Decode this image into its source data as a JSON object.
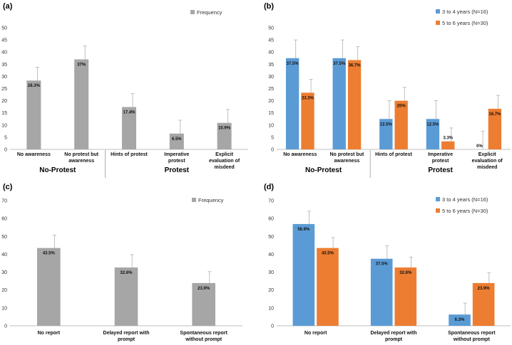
{
  "chart_data": [
    {
      "panel": "(a)",
      "type": "bar",
      "legend": [
        "Frequency"
      ],
      "categories": [
        "No awareness",
        "No protest but awareness",
        "Hints of protest",
        "Imperative protest",
        "Explicit evaluation of misdeed"
      ],
      "series": [
        {
          "name": "Frequency",
          "color": "#a6a6a6",
          "values": [
            28.3,
            37,
            17.4,
            6.5,
            10.9
          ],
          "labels": [
            "28.3%",
            "37%",
            "17.4%",
            "6.5%",
            "10.9%"
          ],
          "errors": [
            5.5,
            5.5,
            5.5,
            5.5,
            5.5
          ]
        }
      ],
      "ylim": [
        0,
        50
      ],
      "ystep": 5,
      "groups": [
        {
          "label": "No-Protest",
          "from": 0,
          "to": 1
        },
        {
          "label": "Protest",
          "from": 2,
          "to": 4
        }
      ]
    },
    {
      "panel": "(b)",
      "type": "bar",
      "legend": [
        "3 to 4 years (N=16)",
        "5 to 6 years (N=30)"
      ],
      "categories": [
        "No awareness",
        "No protest but awareness",
        "Hints of protest",
        "Imperative protest",
        "Explicit evaluation of misdeed"
      ],
      "series": [
        {
          "name": "3 to 4 years (N=16)",
          "color": "#5b9bd5",
          "values": [
            37.5,
            37.5,
            12.5,
            12.5,
            0
          ],
          "labels": [
            "37.5%",
            "37.5%",
            "12.5%",
            "12.5%",
            "0%"
          ],
          "errors": [
            7.5,
            7.5,
            7.5,
            7.5,
            7.5
          ]
        },
        {
          "name": "5 to 6 years (N=30)",
          "color": "#ed7d31",
          "values": [
            23.3,
            36.7,
            20,
            3.3,
            16.7
          ],
          "labels": [
            "23.3%",
            "36.7%",
            "20%",
            "3.3%",
            "16.7%"
          ],
          "errors": [
            5.5,
            5.5,
            5.5,
            5.5,
            5.5
          ]
        }
      ],
      "ylim": [
        0,
        50
      ],
      "ystep": 5,
      "groups": [
        {
          "label": "No-Protest",
          "from": 0,
          "to": 1
        },
        {
          "label": "Protest",
          "from": 2,
          "to": 4
        }
      ]
    },
    {
      "panel": "(c)",
      "type": "bar",
      "legend": [
        "Frequency"
      ],
      "categories": [
        "No report",
        "Delayed report with prompt",
        "Spontaneous report without prompt"
      ],
      "series": [
        {
          "name": "Frequency",
          "color": "#a6a6a6",
          "values": [
            43.5,
            32.6,
            23.9
          ],
          "labels": [
            "43.5%",
            "32.6%",
            "23.9%"
          ],
          "errors": [
            7.2,
            7.2,
            6.4
          ]
        }
      ],
      "ylim": [
        0,
        70
      ],
      "ystep": 10,
      "groups": []
    },
    {
      "panel": "(d)",
      "type": "bar",
      "legend": [
        "3 to 4 years (N=16)",
        "5 to 6 years (N=30)"
      ],
      "categories": [
        "No report",
        "Delayed report with prompt",
        "Spontaneous report without prompt"
      ],
      "series": [
        {
          "name": "3 to 4 years (N=16)",
          "color": "#5b9bd5",
          "values": [
            56.9,
            37.5,
            6.3
          ],
          "labels": [
            "56.9%",
            "37.5%",
            "6.3%"
          ],
          "errors": [
            7.2,
            7.2,
            6.4
          ]
        },
        {
          "name": "5 to 6 years (N=30)",
          "color": "#ed7d31",
          "values": [
            43.5,
            32.6,
            23.9
          ],
          "labels": [
            "43.5%",
            "32.6%",
            "23.9%"
          ],
          "errors": [
            5.8,
            5.8,
            5.8
          ]
        }
      ],
      "ylim": [
        0,
        70
      ],
      "ystep": 10,
      "groups": []
    }
  ]
}
